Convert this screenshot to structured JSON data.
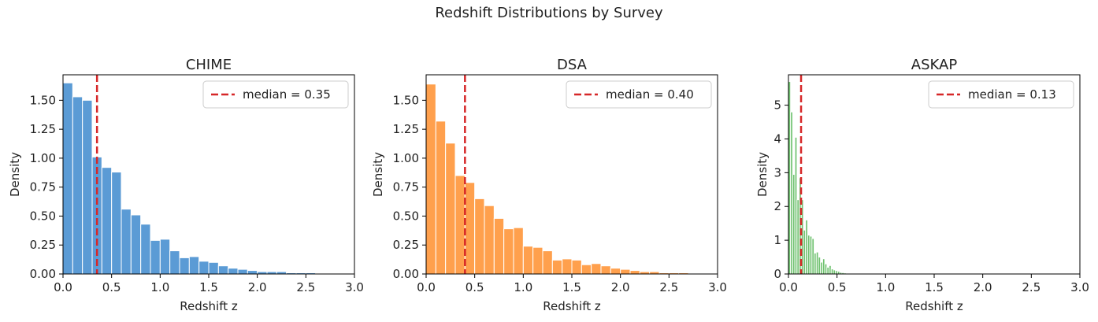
{
  "figure": {
    "suptitle": "Redshift Distributions by Survey"
  },
  "colors": {
    "median_line": "#d62728",
    "bar_edge": "#ffffff",
    "axis": "#000000"
  },
  "chart_data": [
    {
      "type": "bar",
      "title": "CHIME",
      "xlabel": "Redshift z",
      "ylabel": "Density",
      "xlim": [
        0,
        3.0
      ],
      "ylim": [
        0,
        1.72
      ],
      "xticks": [
        "0.0",
        "0.5",
        "1.0",
        "1.5",
        "2.0",
        "2.5",
        "3.0"
      ],
      "yticks": [
        "0.00",
        "0.25",
        "0.50",
        "0.75",
        "1.00",
        "1.25",
        "1.50"
      ],
      "ytick_values": [
        0,
        0.25,
        0.5,
        0.75,
        1.0,
        1.25,
        1.5
      ],
      "color": "#5b9bd5",
      "bin_start": 0.0,
      "bin_width": 0.1,
      "values": [
        1.65,
        1.53,
        1.5,
        1.01,
        0.92,
        0.88,
        0.56,
        0.51,
        0.43,
        0.29,
        0.3,
        0.2,
        0.14,
        0.15,
        0.11,
        0.1,
        0.07,
        0.05,
        0.04,
        0.03,
        0.02,
        0.02,
        0.02,
        0.01,
        0.01,
        0.01,
        0.005,
        0.005,
        0.005,
        0.0
      ],
      "median": 0.35,
      "legend": "median = 0.35",
      "legend_position": "upper right"
    },
    {
      "type": "bar",
      "title": "DSA",
      "xlabel": "Redshift z",
      "ylabel": "Density",
      "xlim": [
        0,
        3.0
      ],
      "ylim": [
        0,
        1.72
      ],
      "xticks": [
        "0.0",
        "0.5",
        "1.0",
        "1.5",
        "2.0",
        "2.5",
        "3.0"
      ],
      "yticks": [
        "0.00",
        "0.25",
        "0.50",
        "0.75",
        "1.00",
        "1.25",
        "1.50"
      ],
      "ytick_values": [
        0,
        0.25,
        0.5,
        0.75,
        1.0,
        1.25,
        1.5
      ],
      "color": "#ffa04d",
      "bin_start": 0.0,
      "bin_width": 0.1,
      "values": [
        1.64,
        1.32,
        1.13,
        0.85,
        0.79,
        0.65,
        0.59,
        0.48,
        0.39,
        0.4,
        0.24,
        0.23,
        0.2,
        0.12,
        0.13,
        0.12,
        0.08,
        0.09,
        0.07,
        0.05,
        0.04,
        0.03,
        0.02,
        0.02,
        0.01,
        0.01,
        0.01,
        0.005,
        0.005,
        0.0
      ],
      "median": 0.4,
      "legend": "median = 0.40",
      "legend_position": "upper right"
    },
    {
      "type": "bar",
      "title": "ASKAP",
      "xlabel": "Redshift z",
      "ylabel": "Density",
      "xlim": [
        0,
        3.0
      ],
      "ylim": [
        0,
        5.9
      ],
      "xticks": [
        "0.0",
        "0.5",
        "1.0",
        "1.5",
        "2.0",
        "2.5",
        "3.0"
      ],
      "yticks": [
        "0",
        "1",
        "2",
        "3",
        "4",
        "5"
      ],
      "ytick_values": [
        0,
        1,
        2,
        3,
        4,
        5
      ],
      "color": "#70c270",
      "bin_start": 0.0,
      "bin_width": 0.022,
      "values": [
        5.7,
        4.8,
        2.95,
        4.05,
        2.2,
        2.85,
        2.2,
        1.3,
        1.6,
        1.15,
        1.12,
        1.05,
        0.62,
        0.65,
        0.5,
        0.35,
        0.45,
        0.3,
        0.2,
        0.25,
        0.15,
        0.12,
        0.1,
        0.08,
        0.05,
        0.04,
        0.03,
        0.02,
        0.02,
        0.01,
        0.01,
        0.01,
        0.01,
        0.005,
        0.005,
        0.005
      ],
      "median": 0.13,
      "legend": "median = 0.13",
      "legend_position": "upper right"
    }
  ]
}
